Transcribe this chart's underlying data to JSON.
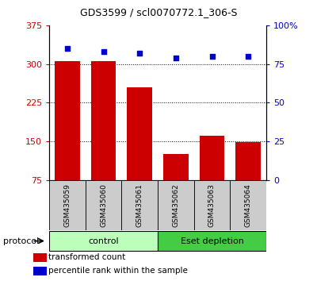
{
  "title": "GDS3599 / scl0070772.1_306-S",
  "samples": [
    "GSM435059",
    "GSM435060",
    "GSM435061",
    "GSM435062",
    "GSM435063",
    "GSM435064"
  ],
  "bar_values": [
    305,
    305,
    255,
    125,
    160,
    148
  ],
  "percentile_values": [
    85,
    83,
    82,
    79,
    80,
    80
  ],
  "bar_color": "#cc0000",
  "dot_color": "#0000cc",
  "ylim_left": [
    75,
    375
  ],
  "ylim_right": [
    0,
    100
  ],
  "yticks_left": [
    75,
    150,
    225,
    300,
    375
  ],
  "yticks_right": [
    0,
    25,
    50,
    75,
    100
  ],
  "ytick_labels_right": [
    "0",
    "25",
    "50",
    "75",
    "100%"
  ],
  "groups": [
    {
      "label": "control",
      "indices": [
        0,
        1,
        2
      ],
      "color": "#bbffbb"
    },
    {
      "label": "Eset depletion",
      "indices": [
        3,
        4,
        5
      ],
      "color": "#44cc44"
    }
  ],
  "protocol_label": "protocol",
  "legend_bar_label": "transformed count",
  "legend_dot_label": "percentile rank within the sample",
  "grid_yticks": [
    150,
    225,
    300
  ],
  "tick_area_color": "#cccccc",
  "bar_width": 0.7
}
